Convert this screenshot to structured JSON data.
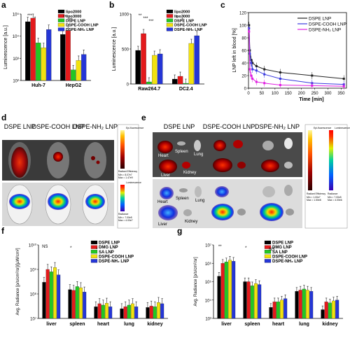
{
  "panel_letters": [
    "a",
    "b",
    "c",
    "d",
    "e",
    "f",
    "g"
  ],
  "colors": {
    "black": "#000000",
    "red": "#e41a1c",
    "green": "#22c722",
    "yellow": "#f2e20e",
    "blue": "#2536d6",
    "c_dark": "#222222",
    "c_blue": "#3a3adf",
    "c_magenta": "#e01ee0"
  },
  "chart_data": [
    {
      "panel": "a",
      "type": "bar",
      "yscale": "log",
      "ylabel": "Luminescence [a.u.]",
      "ylim": [
        100,
        100000
      ],
      "yticks": [
        "10⁵",
        "10⁴",
        "10³",
        "10²"
      ],
      "categories": [
        "Huh-7",
        "HepG2"
      ],
      "series": [
        {
          "name": "lipo2000",
          "color": "#000000",
          "values": [
            45000,
            12000
          ]
        },
        {
          "name": "lipo3000",
          "color": "#e41a1c",
          "values": [
            65000,
            18000
          ]
        },
        {
          "name": "DSPE LNP",
          "color": "#22c722",
          "values": [
            5000,
            300
          ]
        },
        {
          "name": "DSPE-COOH LNP",
          "color": "#f2e20e",
          "values": [
            3000,
            800
          ]
        },
        {
          "name": "DSPE-NH₂ LNP",
          "color": "#2536d6",
          "values": [
            20000,
            1500
          ]
        }
      ],
      "annotations": [
        "***",
        "**",
        "*",
        "***"
      ]
    },
    {
      "panel": "b",
      "type": "bar",
      "ylabel": "Luminescence [a.u.]",
      "ylim": [
        0,
        1000
      ],
      "yticks": [
        "1000",
        "500",
        "0"
      ],
      "categories": [
        "Raw264.7",
        "DC2.4"
      ],
      "series": [
        {
          "name": "lipo2000",
          "color": "#000000",
          "values": [
            480,
            70
          ]
        },
        {
          "name": "lipo3000",
          "color": "#e41a1c",
          "values": [
            720,
            110
          ]
        },
        {
          "name": "DSPE LNP",
          "color": "#22c722",
          "values": [
            30,
            10
          ]
        },
        {
          "name": "DSPE-COOH LNP",
          "color": "#f2e20e",
          "values": [
            410,
            580
          ]
        },
        {
          "name": "DSPE-NH₂ LNP",
          "color": "#2536d6",
          "values": [
            430,
            690
          ]
        }
      ],
      "annotations": [
        "**",
        "*",
        "***",
        "*",
        "***"
      ]
    },
    {
      "panel": "c",
      "type": "scatter",
      "xlabel": "Time [min]",
      "ylabel": "LNP left in blood [%]",
      "xlim": [
        0,
        370
      ],
      "ylim": [
        0,
        120
      ],
      "xticks": [
        "0",
        "50",
        "100",
        "150",
        "200",
        "250",
        "300",
        "350"
      ],
      "yticks": [
        "0",
        "20",
        "40",
        "60",
        "80",
        "100",
        "120"
      ],
      "series": [
        {
          "name": "DSPE LNP",
          "color": "#222222",
          "x": [
            2,
            5,
            10,
            15,
            30,
            60,
            120,
            240,
            360
          ],
          "y": [
            100,
            60,
            45,
            40,
            35,
            30,
            25,
            20,
            15
          ]
        },
        {
          "name": "DSPE-COOH LNP",
          "color": "#3a3adf",
          "x": [
            2,
            5,
            10,
            15,
            30,
            60,
            120,
            240,
            360
          ],
          "y": [
            95,
            55,
            40,
            30,
            28,
            22,
            15,
            8,
            6
          ]
        },
        {
          "name": "DSPE-NH₂ LNP",
          "color": "#e01ee0",
          "x": [
            2,
            5,
            10,
            15,
            30,
            60,
            120,
            240,
            360
          ],
          "y": [
            90,
            30,
            20,
            15,
            10,
            8,
            5,
            4,
            3
          ]
        }
      ]
    },
    {
      "panel": "f",
      "type": "bar",
      "yscale": "log",
      "ylabel": "Avg. Radiance [p/s/cm²/sr]/[µW/cm²]",
      "ylim": [
        10000000,
        10000000000
      ],
      "yticks": [
        "10¹⁰",
        "10⁹",
        "10⁸",
        "10⁷"
      ],
      "categories": [
        "liver",
        "spleen",
        "heart",
        "lung",
        "kidney"
      ],
      "series": [
        {
          "name": "DSPE LNP",
          "color": "#000000",
          "values": [
            300000000,
            150000000,
            30000000,
            25000000,
            28000000
          ]
        },
        {
          "name": "DMG LNP",
          "color": "#e41a1c",
          "values": [
            1000000000,
            140000000,
            40000000,
            30000000,
            32000000
          ]
        },
        {
          "name": "SA LNP",
          "color": "#22c722",
          "values": [
            800000000,
            200000000,
            35000000,
            35000000,
            30000000
          ]
        },
        {
          "name": "DSPE-COOH LNP",
          "color": "#f2e20e",
          "values": [
            1200000000,
            180000000,
            42000000,
            40000000,
            45000000
          ]
        },
        {
          "name": "DSPE-NH₂ LNP",
          "color": "#2536d6",
          "values": [
            600000000,
            120000000,
            30000000,
            30000000,
            40000000
          ]
        }
      ],
      "annotations": [
        "NS",
        "*",
        "*"
      ]
    },
    {
      "panel": "g",
      "type": "bar",
      "yscale": "log",
      "ylabel": "Avg. Radiance [p/s/cm²/sr]",
      "ylim": [
        1000,
        10000000
      ],
      "yticks": [
        "10⁷",
        "10⁶",
        "10⁵",
        "10⁴",
        "10³"
      ],
      "categories": [
        "liver",
        "spleen",
        "heart",
        "lung",
        "kidney"
      ],
      "series": [
        {
          "name": "DSPE LNP",
          "color": "#000000",
          "values": [
            200000,
            100000,
            4000,
            30000,
            3000
          ]
        },
        {
          "name": "DMG LNP",
          "color": "#e41a1c",
          "values": [
            1000000,
            100000,
            8000,
            35000,
            8000
          ]
        },
        {
          "name": "SA LNP",
          "color": "#22c722",
          "values": [
            1200000,
            60000,
            8000,
            40000,
            7000
          ]
        },
        {
          "name": "DSPE-COOH LNP",
          "color": "#f2e20e",
          "values": [
            1500000,
            80000,
            10000,
            35000,
            9000
          ]
        },
        {
          "name": "DSPE-NH₂ LNP",
          "color": "#2536d6",
          "values": [
            1300000,
            70000,
            12000,
            30000,
            10000
          ]
        }
      ],
      "annotations": [
        "**",
        "*",
        "NS"
      ]
    }
  ],
  "panel_d": {
    "titles": [
      "DSPE LNP",
      "DSPE-COOH LNP",
      "DSPE-NH₂ LNP"
    ],
    "colorbar_top": {
      "title": "Epi-fluorescence",
      "unit": "Radiant Efficiency",
      "min_label": "Min = 8.07e7",
      "max_label": "Max = 1.47e9"
    },
    "colorbar_bottom": {
      "title": "Luminescence",
      "unit": "Radiance",
      "min_label": "Min = 7.00e5",
      "max_label": "Max = 4.00e7"
    }
  },
  "panel_e": {
    "titles": [
      "DSPE LNP",
      "DSPE-COOH LNP",
      "DSPE-NH₂ LNP"
    ],
    "organ_labels": [
      "Heart",
      "Spleen",
      "Lung",
      "Liver",
      "Kidney"
    ],
    "colorbar_top": {
      "title": "Epi-fluorescence",
      "unit": "Radiant Efficiency",
      "min_label": "Min = 1.00e7",
      "max_label": "Max = 1.50e8"
    },
    "colorbar_bottom": {
      "title": "Luminescence",
      "unit": "Radiance",
      "min_label": "Min = 7.00e5",
      "max_label": "Max = 4.00e6"
    }
  }
}
